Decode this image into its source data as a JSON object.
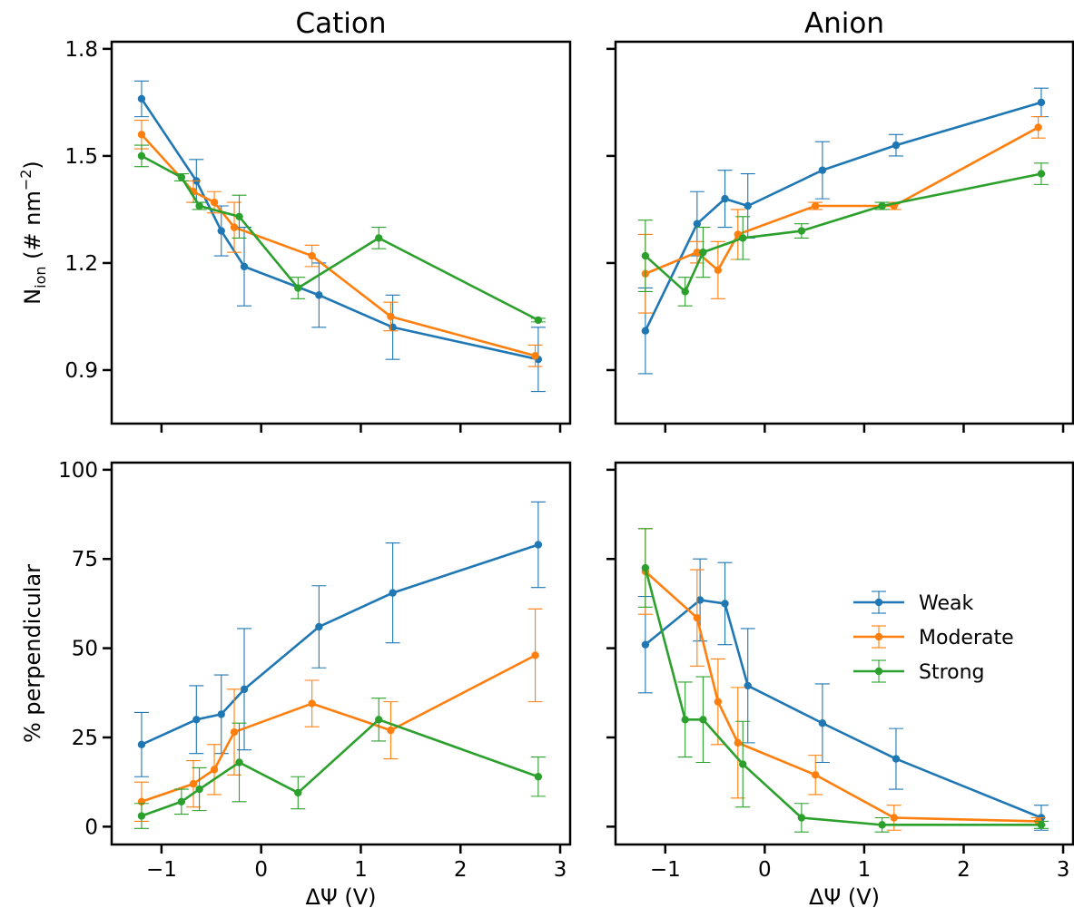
{
  "chart_data": [
    {
      "type": "line",
      "title": "Cation",
      "xlabel": "",
      "ylabel": "N_ion (# nm⁻²)",
      "ylabel_main": "N",
      "ylabel_sub": "ion",
      "ylabel_rest_a": " (# nm",
      "ylabel_sup": "−2",
      "ylabel_rest_b": ")",
      "xlim": [
        -1.5,
        3.1
      ],
      "ylim": [
        0.75,
        1.82
      ],
      "xticks": [
        -1,
        0,
        1,
        2,
        3
      ],
      "yticks": [
        0.9,
        1.2,
        1.5,
        1.8
      ],
      "ytick_labels": [
        "0.9",
        "1.2",
        "1.5",
        "1.8"
      ],
      "xtick_labels": [
        "",
        "",
        "",
        "",
        ""
      ],
      "series": [
        {
          "name": "Weak",
          "color": "#1f77b4",
          "x": [
            -1.2,
            -0.65,
            -0.4,
            -0.17,
            0.58,
            1.32,
            2.78
          ],
          "y": [
            1.66,
            1.43,
            1.29,
            1.19,
            1.11,
            1.02,
            0.93
          ],
          "err": [
            0.05,
            0.06,
            0.07,
            0.11,
            0.09,
            0.09,
            0.09
          ]
        },
        {
          "name": "Moderate",
          "color": "#ff7f0e",
          "x": [
            -1.2,
            -0.68,
            -0.47,
            -0.27,
            0.51,
            1.3,
            2.75
          ],
          "y": [
            1.56,
            1.4,
            1.37,
            1.3,
            1.22,
            1.05,
            0.94
          ],
          "err": [
            0.04,
            0.03,
            0.03,
            0.07,
            0.03,
            0.04,
            0.03
          ]
        },
        {
          "name": "Strong",
          "color": "#2ca02c",
          "x": [
            -1.2,
            -0.8,
            -0.62,
            -0.22,
            0.37,
            1.18,
            2.78
          ],
          "y": [
            1.5,
            1.44,
            1.36,
            1.33,
            1.13,
            1.27,
            1.04
          ],
          "err": [
            0.03,
            0.01,
            0.01,
            0.06,
            0.03,
            0.03,
            0.005
          ]
        }
      ]
    },
    {
      "type": "line",
      "title": "Anion",
      "xlabel": "",
      "ylabel": "",
      "xlim": [
        -1.5,
        3.1
      ],
      "ylim": [
        0.75,
        1.82
      ],
      "xticks": [
        -1,
        0,
        1,
        2,
        3
      ],
      "yticks": [
        0.9,
        1.2,
        1.5,
        1.8
      ],
      "ytick_labels": [
        "",
        "",
        "",
        ""
      ],
      "xtick_labels": [
        "",
        "",
        "",
        "",
        ""
      ],
      "series": [
        {
          "name": "Weak",
          "color": "#1f77b4",
          "x": [
            -1.2,
            -0.68,
            -0.4,
            -0.17,
            0.58,
            1.32,
            2.78
          ],
          "y": [
            1.01,
            1.31,
            1.38,
            1.36,
            1.46,
            1.53,
            1.65
          ],
          "err": [
            0.12,
            0.09,
            0.08,
            0.09,
            0.08,
            0.03,
            0.04
          ]
        },
        {
          "name": "Moderate",
          "color": "#ff7f0e",
          "x": [
            -1.2,
            -0.68,
            -0.47,
            -0.27,
            0.51,
            1.3,
            2.75
          ],
          "y": [
            1.17,
            1.23,
            1.18,
            1.28,
            1.36,
            1.36,
            1.58
          ],
          "err": [
            0.11,
            0.03,
            0.08,
            0.07,
            0.01,
            0.01,
            0.03
          ]
        },
        {
          "name": "Strong",
          "color": "#2ca02c",
          "x": [
            -1.2,
            -0.8,
            -0.62,
            -0.22,
            0.37,
            1.18,
            2.78
          ],
          "y": [
            1.22,
            1.12,
            1.23,
            1.27,
            1.29,
            1.36,
            1.45
          ],
          "err": [
            0.1,
            0.04,
            0.07,
            0.06,
            0.02,
            0.01,
            0.03
          ]
        }
      ]
    },
    {
      "type": "line",
      "title": "",
      "xlabel": "ΔΨ (V)",
      "ylabel": "% perpendicular",
      "xlim": [
        -1.5,
        3.1
      ],
      "ylim": [
        -5,
        102
      ],
      "xticks": [
        -1,
        0,
        1,
        2,
        3
      ],
      "yticks": [
        0,
        25,
        50,
        75,
        100
      ],
      "ytick_labels": [
        "0",
        "25",
        "50",
        "75",
        "100"
      ],
      "xtick_labels": [
        "−1",
        "0",
        "1",
        "2",
        "3"
      ],
      "series": [
        {
          "name": "Weak",
          "color": "#1f77b4",
          "x": [
            -1.2,
            -0.65,
            -0.4,
            -0.17,
            0.58,
            1.32,
            2.78
          ],
          "y": [
            23,
            30,
            31.5,
            38.5,
            56,
            65.5,
            79
          ],
          "err": [
            9,
            9.5,
            11,
            17,
            11.5,
            14,
            12
          ]
        },
        {
          "name": "Moderate",
          "color": "#ff7f0e",
          "x": [
            -1.2,
            -0.68,
            -0.47,
            -0.27,
            0.51,
            1.3,
            2.75
          ],
          "y": [
            7,
            12,
            16,
            26.5,
            34.5,
            27,
            48
          ],
          "err": [
            5.5,
            6.5,
            7,
            12,
            6.5,
            8,
            13
          ]
        },
        {
          "name": "Strong",
          "color": "#2ca02c",
          "x": [
            -1.2,
            -0.8,
            -0.62,
            -0.22,
            0.37,
            1.18,
            2.78
          ],
          "y": [
            3,
            7,
            10.5,
            18,
            9.5,
            30,
            14
          ],
          "err": [
            3.5,
            3.5,
            6,
            11,
            4.5,
            6,
            5.5
          ]
        }
      ]
    },
    {
      "type": "line",
      "title": "",
      "xlabel": "ΔΨ (V)",
      "ylabel": "",
      "xlim": [
        -1.5,
        3.1
      ],
      "ylim": [
        -5,
        102
      ],
      "xticks": [
        -1,
        0,
        1,
        2,
        3
      ],
      "yticks": [
        0,
        25,
        50,
        75,
        100
      ],
      "ytick_labels": [
        "",
        "",
        "",
        "",
        ""
      ],
      "xtick_labels": [
        "−1",
        "0",
        "1",
        "2",
        "3"
      ],
      "legend": {
        "placement": "center-right",
        "entries": [
          "Weak",
          "Moderate",
          "Strong"
        ]
      },
      "series": [
        {
          "name": "Weak",
          "color": "#1f77b4",
          "x": [
            -1.2,
            -0.65,
            -0.4,
            -0.17,
            0.58,
            1.32,
            2.78
          ],
          "y": [
            51,
            63.5,
            62.5,
            39.5,
            29,
            19,
            2.5
          ],
          "err": [
            13.5,
            11.5,
            11.5,
            16,
            11,
            8.5,
            3.5
          ]
        },
        {
          "name": "Moderate",
          "color": "#ff7f0e",
          "x": [
            -1.2,
            -0.68,
            -0.47,
            -0.27,
            0.51,
            1.3,
            2.75
          ],
          "y": [
            71.5,
            58.5,
            35,
            23.5,
            14.5,
            2.5,
            1.5
          ],
          "err": [
            12,
            13.5,
            12,
            15.5,
            5.5,
            3.5,
            1
          ]
        },
        {
          "name": "Strong",
          "color": "#2ca02c",
          "x": [
            -1.2,
            -0.8,
            -0.62,
            -0.22,
            0.37,
            1.18,
            2.78
          ],
          "y": [
            72.5,
            30,
            30,
            17.5,
            2.5,
            0.5,
            0.5
          ],
          "err": [
            11,
            10.5,
            12,
            12,
            4,
            2,
            1
          ]
        }
      ]
    }
  ]
}
